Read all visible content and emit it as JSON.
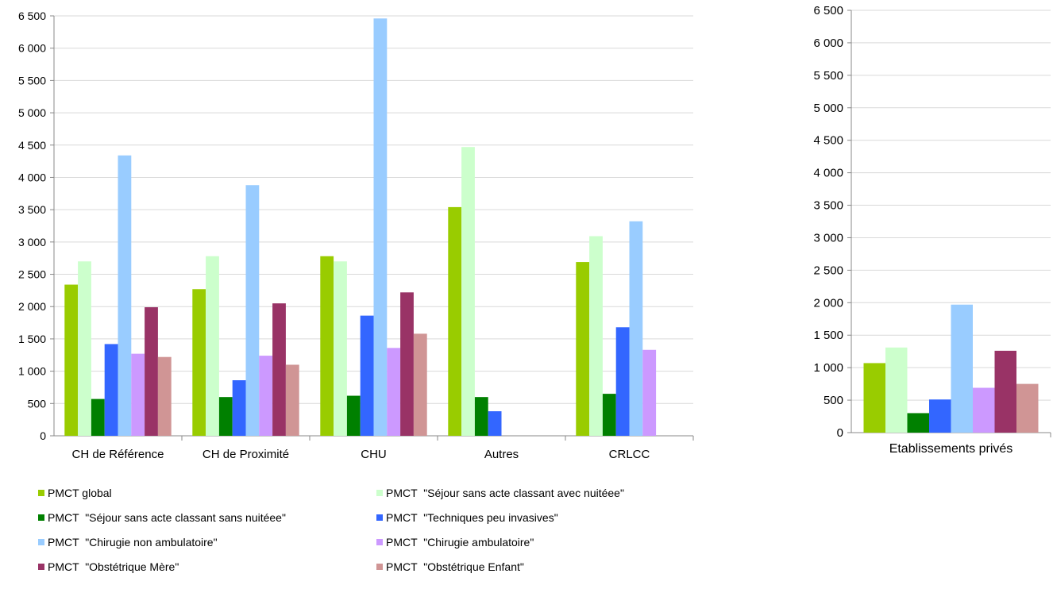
{
  "chart_data": [
    {
      "type": "bar",
      "categories": [
        "CH de Référence",
        "CH de Proximité",
        "CHU",
        "Autres",
        "CRLCC"
      ],
      "ylim": [
        0,
        6500
      ],
      "yticks": [
        "0",
        "500",
        "1 000",
        "1 500",
        "2 000",
        "2 500",
        "3 000",
        "3 500",
        "4 000",
        "4 500",
        "5 000",
        "5 500",
        "6 000",
        "6 500"
      ],
      "grid": true,
      "legend_position": "bottom",
      "series": [
        {
          "name": "PMCT global",
          "color": "#99cc00",
          "values": [
            2340,
            2270,
            2780,
            3540,
            2690
          ]
        },
        {
          "name": "PMCT  \"Séjour sans acte classant avec nuitéee\"",
          "color": "#ccffcc",
          "values": [
            2700,
            2780,
            2700,
            4470,
            3090
          ]
        },
        {
          "name": "PMCT  \"Séjour sans acte classant sans nuitéee\"",
          "color": "#008000",
          "values": [
            570,
            600,
            620,
            600,
            650
          ]
        },
        {
          "name": "PMCT  \"Techniques peu invasives\"",
          "color": "#3366ff",
          "values": [
            1420,
            860,
            1860,
            380,
            1680
          ]
        },
        {
          "name": "PMCT  \"Chirugie non ambulatoire\"",
          "color": "#99ccff",
          "values": [
            4340,
            3880,
            6460,
            null,
            3320
          ]
        },
        {
          "name": "PMCT  \"Chirugie ambulatoire\"",
          "color": "#cc99ff",
          "values": [
            1270,
            1240,
            1360,
            null,
            1330
          ]
        },
        {
          "name": "PMCT  \"Obstétrique Mère\"",
          "color": "#993366",
          "values": [
            1990,
            2050,
            2220,
            null,
            null
          ]
        },
        {
          "name": "PMCT  \"Obstétrique Enfant\"",
          "color": "#d09595",
          "values": [
            1220,
            1100,
            1580,
            null,
            null
          ]
        }
      ]
    },
    {
      "type": "bar",
      "categories": [
        "Etablissements privés"
      ],
      "ylim": [
        0,
        6500
      ],
      "yticks": [
        "0",
        "500",
        "1 000",
        "1 500",
        "2 000",
        "2 500",
        "3 000",
        "3 500",
        "4 000",
        "4 500",
        "5 000",
        "5 500",
        "6 000",
        "6 500"
      ],
      "grid": true,
      "series": [
        {
          "color": "#99cc00",
          "values": [
            1070
          ]
        },
        {
          "color": "#ccffcc",
          "values": [
            1310
          ]
        },
        {
          "color": "#008000",
          "values": [
            300
          ]
        },
        {
          "color": "#3366ff",
          "values": [
            510
          ]
        },
        {
          "color": "#99ccff",
          "values": [
            1970
          ]
        },
        {
          "color": "#cc99ff",
          "values": [
            690
          ]
        },
        {
          "color": "#993366",
          "values": [
            1260
          ]
        },
        {
          "color": "#d09595",
          "values": [
            750
          ]
        }
      ]
    }
  ]
}
